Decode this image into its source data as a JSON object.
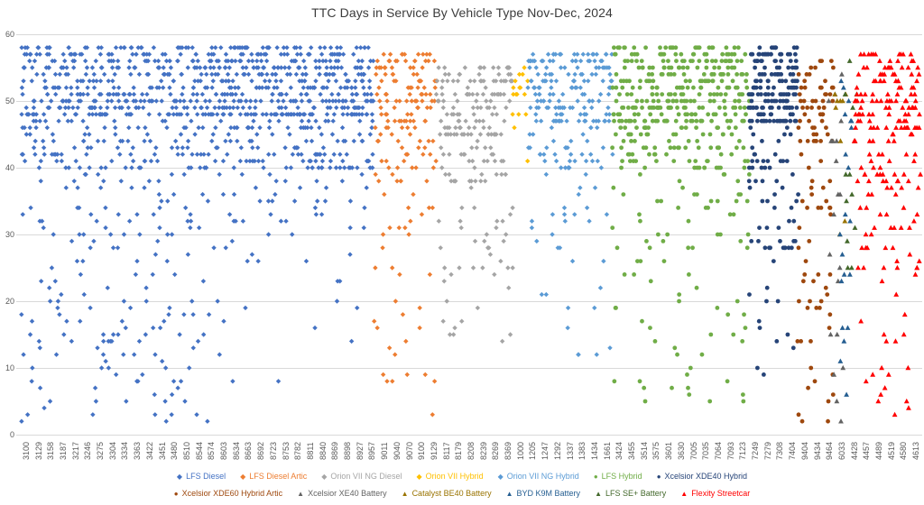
{
  "chart_data": {
    "type": "scatter",
    "title": "TTC Days in Service By Vehicle Type Nov-Dec, 2024",
    "xlabel": "",
    "ylabel": "",
    "ylim": [
      0,
      60
    ],
    "yticks": [
      0,
      10,
      20,
      30,
      40,
      50,
      60
    ],
    "grid": "horizontal",
    "gridline_color": "#D9D9D9",
    "axis_text_color": "#595959",
    "title_color": "#3b3b3b",
    "legend_position": "bottom",
    "legend_rows": [
      7,
      6
    ],
    "seed": 20241224,
    "x_tick_labels": [
      "3100",
      "3129",
      "3158",
      "3187",
      "3217",
      "3246",
      "3275",
      "3304",
      "3334",
      "3363",
      "3422",
      "3451",
      "3480",
      "8510",
      "8544",
      "8574",
      "8603",
      "8634",
      "8663",
      "8692",
      "8723",
      "8753",
      "8782",
      "8811",
      "8840",
      "8869",
      "8898",
      "8927",
      "8957",
      "9011",
      "9040",
      "9070",
      "9100",
      "9129",
      "8117",
      "8179",
      "8208",
      "8239",
      "8269",
      "8369",
      "1000",
      "1205",
      "1247",
      "1292",
      "1337",
      "1383",
      "1434",
      "1661",
      "3424",
      "3455",
      "3514",
      "3575",
      "3601",
      "3630",
      "7005",
      "7035",
      "7064",
      "7093",
      "7123",
      "7249",
      "7279",
      "7308",
      "7404",
      "9404",
      "9434",
      "9464",
      "6033",
      "4428",
      "4457",
      "4489",
      "4519",
      "4580",
      "4613"
    ],
    "series": [
      {
        "name": "LFS Diesel",
        "color": "#4472C4",
        "marker": "diamond",
        "x0": 0.001,
        "x1": 0.21,
        "columns": 185,
        "points_per_column": 3.2,
        "bands": [
          [
            48,
            58,
            0.52
          ],
          [
            40,
            48,
            0.2
          ],
          [
            20,
            40,
            0.15
          ],
          [
            2,
            20,
            0.13
          ]
        ]
      },
      {
        "name": "LFS Diesel",
        "in_legend": false,
        "color": "#4472C4",
        "marker": "diamond",
        "x0": 0.21,
        "x1": 0.392,
        "columns": 170,
        "points_per_column": 3.2,
        "bands": [
          [
            48,
            58,
            0.66
          ],
          [
            40,
            48,
            0.23
          ],
          [
            28,
            40,
            0.08
          ],
          [
            8,
            28,
            0.03
          ]
        ]
      },
      {
        "name": "LFS Diesel Artic",
        "color": "#ED7D31",
        "marker": "diamond",
        "x0": 0.393,
        "x1": 0.462,
        "columns": 64,
        "points_per_column": 2.6,
        "bands": [
          [
            47,
            57,
            0.55
          ],
          [
            38,
            47,
            0.22
          ],
          [
            25,
            38,
            0.13
          ],
          [
            2,
            25,
            0.1
          ]
        ]
      },
      {
        "name": "Orion VII NG Diesel",
        "color": "#A5A5A5",
        "marker": "diamond",
        "x0": 0.462,
        "x1": 0.546,
        "columns": 78,
        "points_per_column": 2.5,
        "bands": [
          [
            45,
            55,
            0.57
          ],
          [
            38,
            45,
            0.22
          ],
          [
            25,
            38,
            0.13
          ],
          [
            14,
            25,
            0.08
          ]
        ]
      },
      {
        "name": "Orion VII Hybrid",
        "color": "#FFC000",
        "marker": "diamond",
        "x0": 0.546,
        "x1": 0.563,
        "columns": 9,
        "points_per_column": 2.2,
        "bands": [
          [
            46,
            55,
            0.72
          ],
          [
            40,
            46,
            0.16
          ],
          [
            32,
            40,
            0.12
          ]
        ]
      },
      {
        "name": "Orion VII NG Hybrid",
        "color": "#5B9BD5",
        "marker": "diamond",
        "x0": 0.563,
        "x1": 0.657,
        "columns": 86,
        "points_per_column": 2.6,
        "bands": [
          [
            47,
            57,
            0.6
          ],
          [
            40,
            47,
            0.2
          ],
          [
            28,
            40,
            0.12
          ],
          [
            12,
            28,
            0.08
          ]
        ]
      },
      {
        "name": "LFS Hybrid",
        "color": "#70AD47",
        "marker": "circle",
        "x0": 0.657,
        "x1": 0.808,
        "columns": 140,
        "points_per_column": 3.2,
        "bands": [
          [
            47,
            58,
            0.62
          ],
          [
            40,
            47,
            0.2
          ],
          [
            28,
            40,
            0.1
          ],
          [
            5,
            28,
            0.08
          ]
        ]
      },
      {
        "name": "Xcelsior XDE40 Hybrid",
        "color": "#264478",
        "marker": "circle",
        "x0": 0.808,
        "x1": 0.862,
        "columns": 78,
        "points_per_column": 2.8,
        "bands": [
          [
            47,
            58,
            0.62
          ],
          [
            40,
            47,
            0.2
          ],
          [
            28,
            40,
            0.1
          ],
          [
            8,
            28,
            0.08
          ]
        ]
      },
      {
        "name": "Xcelsior XDE60 Hybrid Artic",
        "color": "#9E480E",
        "marker": "circle",
        "x0": 0.862,
        "x1": 0.902,
        "columns": 38,
        "points_per_column": 2.8,
        "bands": [
          [
            44,
            56,
            0.45
          ],
          [
            34,
            44,
            0.22
          ],
          [
            20,
            34,
            0.18
          ],
          [
            2,
            20,
            0.15
          ]
        ]
      },
      {
        "name": "Xcelsior XE40 Battery",
        "color": "#636363",
        "marker": "triangle",
        "x0": 0.896,
        "x1": 0.912,
        "columns": 12,
        "points_per_column": 1.6,
        "bands": [
          [
            44,
            55,
            0.35
          ],
          [
            28,
            44,
            0.25
          ],
          [
            15,
            28,
            0.2
          ],
          [
            2,
            15,
            0.2
          ]
        ]
      },
      {
        "name": "Catalyst BE40 Battery",
        "color": "#997300",
        "marker": "triangle",
        "x0": 0.902,
        "x1": 0.916,
        "columns": 8,
        "points_per_column": 1.5,
        "bands": [
          [
            44,
            52,
            0.5
          ],
          [
            30,
            44,
            0.25
          ],
          [
            16,
            30,
            0.25
          ]
        ]
      },
      {
        "name": "BYD K9M Battery",
        "color": "#255E91",
        "marker": "triangle",
        "x0": 0.908,
        "x1": 0.922,
        "columns": 12,
        "points_per_column": 1.6,
        "bands": [
          [
            42,
            54,
            0.4
          ],
          [
            25,
            42,
            0.25
          ],
          [
            12,
            25,
            0.2
          ],
          [
            3,
            12,
            0.15
          ]
        ]
      },
      {
        "name": "LFS SE+ Battery",
        "color": "#43682B",
        "marker": "triangle",
        "x0": 0.914,
        "x1": 0.928,
        "columns": 10,
        "points_per_column": 1.5,
        "bands": [
          [
            44,
            56,
            0.55
          ],
          [
            30,
            44,
            0.25
          ],
          [
            17,
            30,
            0.2
          ]
        ]
      },
      {
        "name": "Flexity Streetcar",
        "color": "#FF0000",
        "marker": "triangle",
        "x0": 0.925,
        "x1": 0.998,
        "columns": 62,
        "points_per_column": 3.1,
        "bands": [
          [
            46,
            57,
            0.53
          ],
          [
            38,
            46,
            0.18
          ],
          [
            25,
            38,
            0.16
          ],
          [
            3,
            25,
            0.13
          ]
        ]
      }
    ]
  }
}
